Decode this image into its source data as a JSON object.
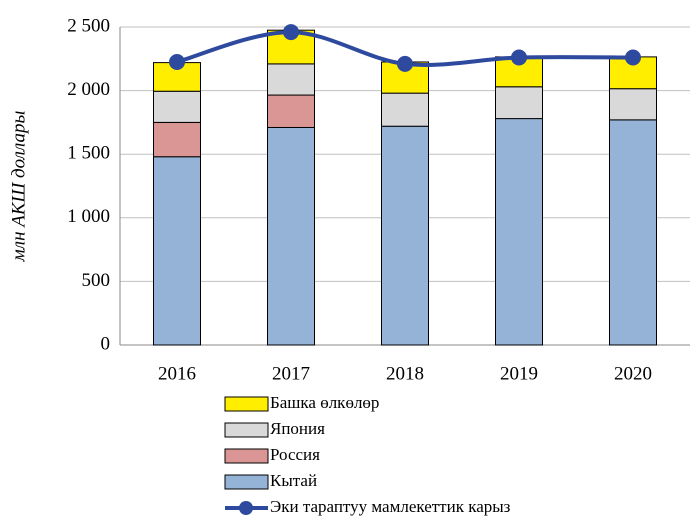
{
  "chart_data": {
    "type": "stacked_bar_line",
    "y_axis_label": "млн АКШ доллары",
    "categories": [
      "2016",
      "2017",
      "2018",
      "2019",
      "2020"
    ],
    "series": [
      {
        "name": "Кытай",
        "color": "#95b3d7",
        "values": [
          1480,
          1710,
          1720,
          1780,
          1770
        ]
      },
      {
        "name": "Россия",
        "color": "#da9694",
        "values": [
          270,
          255,
          0,
          0,
          0
        ]
      },
      {
        "name": "Япония",
        "color": "#d9d9d9",
        "values": [
          245,
          245,
          260,
          250,
          245
        ]
      },
      {
        "name": "Башка өлкөлөр",
        "color": "#ffee00",
        "values": [
          225,
          265,
          245,
          235,
          250
        ]
      }
    ],
    "line": {
      "name": "Эки тараптуу мамлекеттик карыз",
      "color": "#2e4a9e",
      "values": [
        2225,
        2460,
        2210,
        2260,
        2260
      ]
    },
    "ylim": [
      0,
      2500
    ],
    "yticks": [
      0,
      500,
      {
        "value": 1000,
        "label": "1 000"
      },
      {
        "value": 1500,
        "label": "1 500"
      },
      {
        "value": 2000,
        "label": "2 000"
      },
      {
        "value": 2500,
        "label": "2 500"
      }
    ],
    "grid": true
  }
}
